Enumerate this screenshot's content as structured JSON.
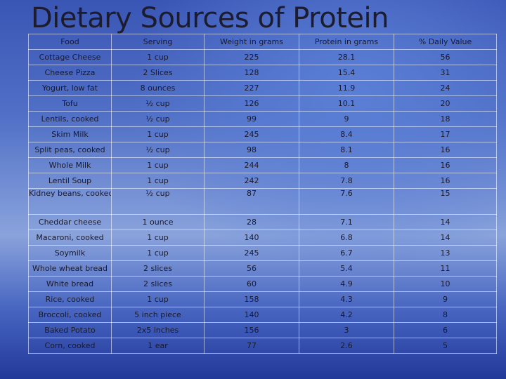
{
  "slide": {
    "title": "Dietary Sources of Protein"
  },
  "table": {
    "headers": [
      "Food",
      "Serving",
      "Weight in grams",
      "Protein in grams",
      "% Daily Value"
    ],
    "rows": [
      [
        "Cottage Cheese",
        "1 cup",
        "225",
        "28.1",
        "56"
      ],
      [
        "Cheese Pizza",
        "2 Slices",
        "128",
        "15.4",
        "31"
      ],
      [
        "Yogurt, low fat",
        "8 ounces",
        "227",
        "11.9",
        "24"
      ],
      [
        "Tofu",
        "½ cup",
        "126",
        "10.1",
        "20"
      ],
      [
        "Lentils, cooked",
        "½ cup",
        "99",
        "9",
        "18"
      ],
      [
        "Skim Milk",
        "1 cup",
        "245",
        "8.4",
        "17"
      ],
      [
        "Split peas, cooked",
        "½ cup",
        "98",
        "8.1",
        "16"
      ],
      [
        "Whole Milk",
        "1 cup",
        "244",
        "8",
        "16"
      ],
      [
        "Lentil Soup",
        "1 cup",
        "242",
        "7.8",
        "16"
      ],
      [
        "Kidney beans, cooked",
        "½ cup",
        "87",
        "7.6",
        "15"
      ],
      [
        "Cheddar cheese",
        "1 ounce",
        "28",
        "7.1",
        "14"
      ],
      [
        "Macaroni, cooked",
        "1 cup",
        "140",
        "6.8",
        "14"
      ],
      [
        "Soymilk",
        "1 cup",
        "245",
        "6.7",
        "13"
      ],
      [
        "Whole wheat bread",
        "2 slices",
        "56",
        "5.4",
        "11"
      ],
      [
        "White bread",
        "2 slices",
        "60",
        "4.9",
        "10"
      ],
      [
        "Rice, cooked",
        "1 cup",
        "158",
        "4.3",
        "9"
      ],
      [
        "Broccoli, cooked",
        "5 inch piece",
        "140",
        "4.2",
        "8"
      ],
      [
        "Baked Potato",
        "2x5 inches",
        "156",
        "3",
        "6"
      ],
      [
        "Corn, cooked",
        "1 ear",
        "77",
        "2.6",
        "5"
      ]
    ]
  }
}
